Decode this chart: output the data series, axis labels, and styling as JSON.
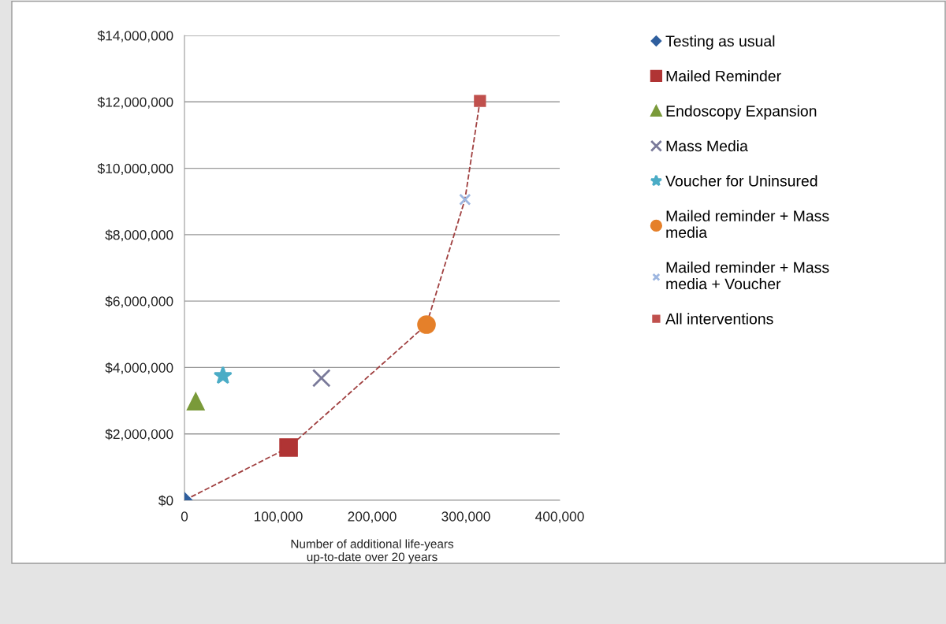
{
  "chart_data": {
    "type": "scatter",
    "xlabel": "Number of additional life-years up-to-date over 20 years",
    "xlim": [
      0,
      400000
    ],
    "xticks": [
      {
        "value": 0,
        "label": "0"
      },
      {
        "value": 100000,
        "label": "100,000"
      },
      {
        "value": 200000,
        "label": "200,000"
      },
      {
        "value": 300000,
        "label": "300,000"
      },
      {
        "value": 400000,
        "label": "400,000"
      }
    ],
    "ylim": [
      0,
      14000000
    ],
    "yticks": [
      {
        "value": 0,
        "label": "$0"
      },
      {
        "value": 2000000,
        "label": "$2,000,000"
      },
      {
        "value": 4000000,
        "label": "$4,000,000"
      },
      {
        "value": 6000000,
        "label": "$6,000,000"
      },
      {
        "value": 8000000,
        "label": "$8,000,000"
      },
      {
        "value": 10000000,
        "label": "$10,000,000"
      },
      {
        "value": 12000000,
        "label": "$12,000,000"
      },
      {
        "value": 14000000,
        "label": "$14,000,000"
      }
    ],
    "grid": "y",
    "legend": "right",
    "series": [
      {
        "name": "Testing as usual",
        "color": "#2f5f9e",
        "marker": "diamond",
        "x": [
          0
        ],
        "values": [
          0
        ]
      },
      {
        "name": "Mailed Reminder",
        "color": "#b03434",
        "marker": "square",
        "x": [
          111000
        ],
        "values": [
          1590000
        ]
      },
      {
        "name": "Endoscopy Expansion",
        "color": "#7a9a3a",
        "marker": "triangle",
        "x": [
          12000
        ],
        "values": [
          2970000
        ]
      },
      {
        "name": "Mass Media",
        "color": "#7a7a9a",
        "marker": "cross",
        "x": [
          146000
        ],
        "values": [
          3680000
        ]
      },
      {
        "name": "Voucher for Uninsured",
        "color": "#4bacc6",
        "marker": "star",
        "x": [
          41000
        ],
        "values": [
          3750000
        ]
      },
      {
        "name": "Mailed reminder + Mass media",
        "color": "#e5802a",
        "marker": "circle",
        "x": [
          258000
        ],
        "values": [
          5290000
        ]
      },
      {
        "name": "Mailed reminder + Mass media + Voucher",
        "color": "#9db6e0",
        "marker": "cross",
        "x": [
          299000
        ],
        "values": [
          9060000
        ]
      },
      {
        "name": "All interventions",
        "color": "#c0504d",
        "marker": "square",
        "x": [
          315000
        ],
        "values": [
          12030000
        ]
      },
      {
        "type": "line",
        "color": "#a04040",
        "line_style": "dashed",
        "marker": "none",
        "x": [
          0,
          111000,
          258000,
          299000,
          315000
        ],
        "values": [
          0,
          1590000,
          5290000,
          9060000,
          12030000
        ]
      }
    ]
  }
}
